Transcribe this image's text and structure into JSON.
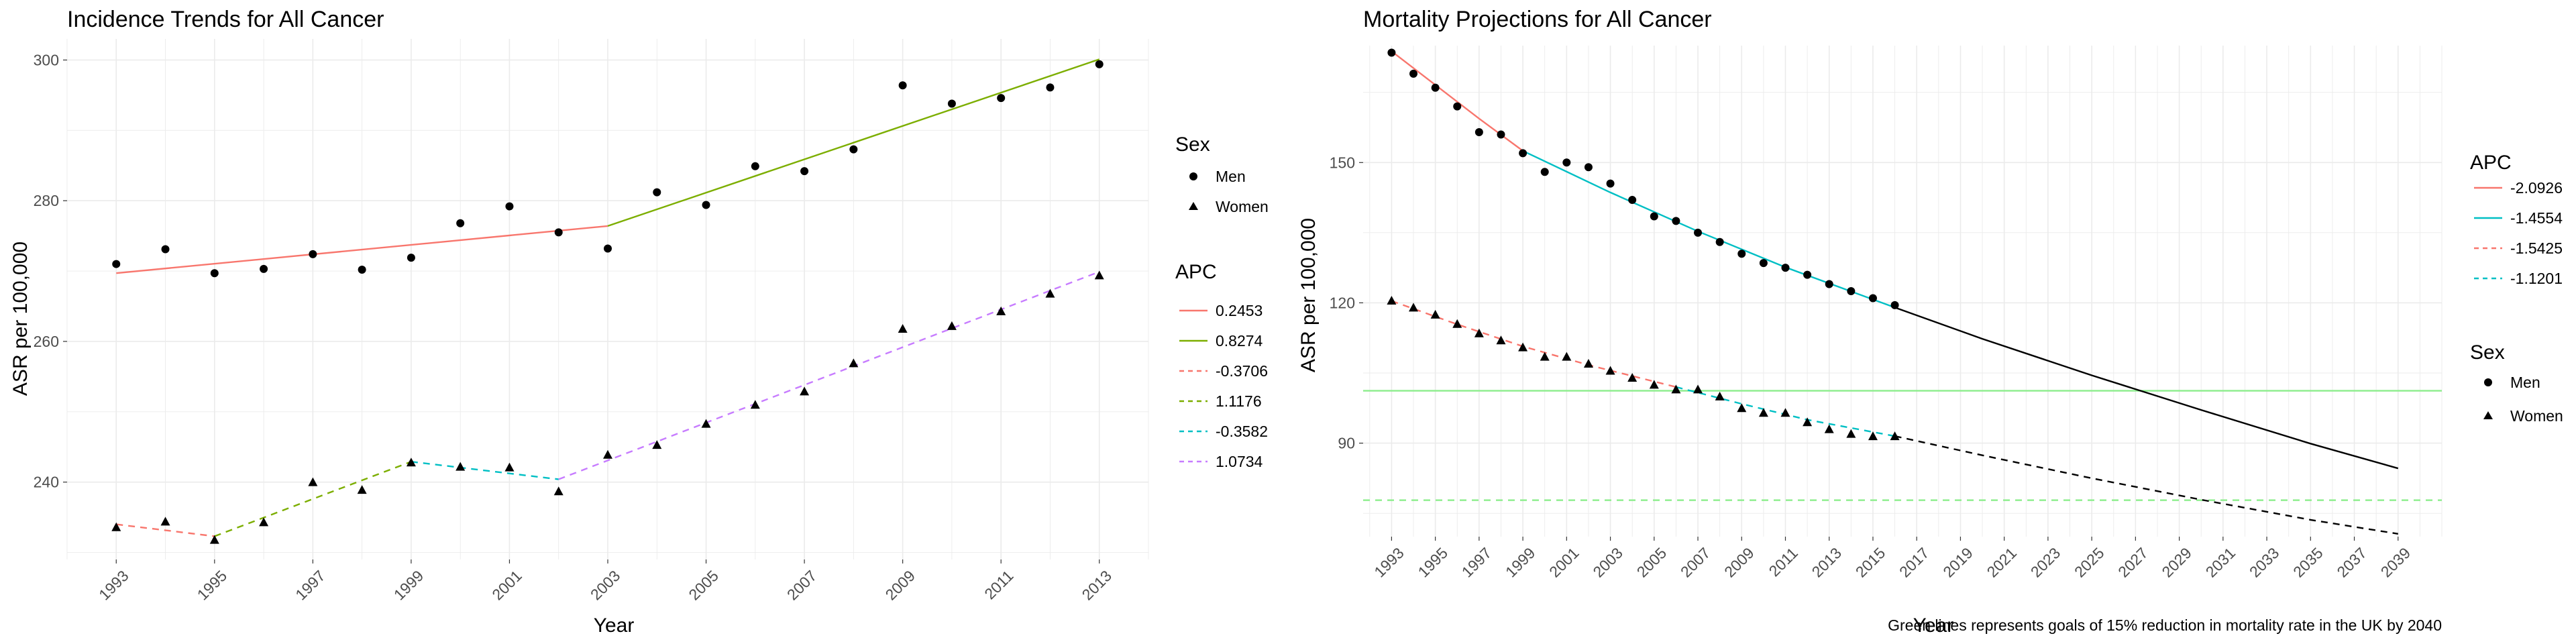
{
  "colors": {
    "red": "#F8766D",
    "olive": "#7CAE00",
    "cyan": "#00BFC4",
    "purple": "#C77CFF",
    "green_goal": "#90EE90",
    "black": "#000000",
    "grid": "#ebebeb"
  },
  "chart_data": [
    {
      "type": "scatter",
      "title": "Incidence Trends for All Cancer",
      "xlabel": "Year",
      "ylabel": "ASR per 100,000",
      "xlim": [
        1992,
        2014
      ],
      "ylim": [
        229,
        303
      ],
      "xticks": [
        "1993",
        "1995",
        "1997",
        "1999",
        "2001",
        "2003",
        "2005",
        "2007",
        "2009",
        "2011",
        "2013"
      ],
      "yticks": [
        "240",
        "260",
        "280",
        "300"
      ],
      "grid": true,
      "legend_placement": "right",
      "legend_sex": {
        "title": "Sex",
        "items": [
          {
            "label": "Men",
            "shape": "circle"
          },
          {
            "label": "Women",
            "shape": "triangle"
          }
        ]
      },
      "legend_apc": {
        "title": "APC",
        "items": [
          {
            "label": "0.2453",
            "color": "#F8766D",
            "dash": "solid"
          },
          {
            "label": "0.8274",
            "color": "#7CAE00",
            "dash": "solid"
          },
          {
            "label": "-0.3706",
            "color": "#F8766D",
            "dash": "dashed"
          },
          {
            "label": "1.1176",
            "color": "#7CAE00",
            "dash": "dashed"
          },
          {
            "label": "-0.3582",
            "color": "#00BFC4",
            "dash": "dashed"
          },
          {
            "label": "1.0734",
            "color": "#C77CFF",
            "dash": "dashed"
          }
        ]
      },
      "series": [
        {
          "name": "Men",
          "shape": "circle",
          "x": [
            1993,
            1994,
            1995,
            1996,
            1997,
            1998,
            1999,
            2000,
            2001,
            2002,
            2003,
            2004,
            2005,
            2006,
            2007,
            2008,
            2009,
            2010,
            2011,
            2012,
            2013
          ],
          "y": [
            271.0,
            273.1,
            269.7,
            270.3,
            272.4,
            270.2,
            271.9,
            276.8,
            279.2,
            275.5,
            273.2,
            281.2,
            279.4,
            284.9,
            284.2,
            287.3,
            296.4,
            293.8,
            294.6,
            296.1,
            299.4
          ]
        },
        {
          "name": "Women",
          "shape": "triangle",
          "x": [
            1993,
            1994,
            1995,
            1996,
            1997,
            1998,
            1999,
            2000,
            2001,
            2002,
            2003,
            2004,
            2005,
            2006,
            2007,
            2008,
            2009,
            2010,
            2011,
            2012,
            2013
          ],
          "y": [
            233.6,
            234.4,
            231.8,
            234.3,
            240.0,
            238.9,
            242.8,
            242.2,
            242.1,
            238.7,
            243.9,
            245.3,
            248.3,
            251.0,
            252.9,
            256.9,
            261.8,
            262.2,
            264.3,
            266.8,
            269.4
          ]
        }
      ],
      "fit_lines": [
        {
          "apc": "0.2453",
          "color": "#F8766D",
          "dash": "solid",
          "x": [
            1993,
            2003
          ],
          "y": [
            269.7,
            276.4
          ]
        },
        {
          "apc": "0.8274",
          "color": "#7CAE00",
          "dash": "solid",
          "x": [
            2003,
            2013
          ],
          "y": [
            276.4,
            300.1
          ]
        },
        {
          "apc": "-0.3706",
          "color": "#F8766D",
          "dash": "dashed",
          "x": [
            1993,
            1995
          ],
          "y": [
            234.0,
            232.3
          ]
        },
        {
          "apc": "1.1176",
          "color": "#7CAE00",
          "dash": "dashed",
          "x": [
            1995,
            1999
          ],
          "y": [
            232.3,
            242.9
          ]
        },
        {
          "apc": "-0.3582",
          "color": "#00BFC4",
          "dash": "dashed",
          "x": [
            1999,
            2002
          ],
          "y": [
            242.9,
            240.4
          ]
        },
        {
          "apc": "1.0734",
          "color": "#C77CFF",
          "dash": "dashed",
          "x": [
            2002,
            2013
          ],
          "y": [
            240.4,
            269.9
          ]
        }
      ]
    },
    {
      "type": "scatter",
      "title": "Mortality Projections for All Cancer",
      "xlabel": "Year",
      "ylabel": "ASR per 100,000",
      "xlim": [
        1991.7,
        2041
      ],
      "ylim": [
        70,
        175
      ],
      "xticks": [
        "1993",
        "1995",
        "1997",
        "1999",
        "2001",
        "2003",
        "2005",
        "2007",
        "2009",
        "2011",
        "2013",
        "2015",
        "2017",
        "2019",
        "2021",
        "2023",
        "2025",
        "2027",
        "2029",
        "2031",
        "2033",
        "2035",
        "2037",
        "2039"
      ],
      "yticks": [
        "90",
        "120",
        "150"
      ],
      "grid": true,
      "legend_placement": "right",
      "caption": "Green lines represents goals of 15% reduction in mortality rate in the UK by 2040",
      "legend_apc": {
        "title": "APC",
        "items": [
          {
            "label": "-2.0926",
            "color": "#F8766D",
            "dash": "solid"
          },
          {
            "label": "-1.4554",
            "color": "#00BFC4",
            "dash": "solid"
          },
          {
            "label": "-1.5425",
            "color": "#F8766D",
            "dash": "dashed"
          },
          {
            "label": "-1.1201",
            "color": "#00BFC4",
            "dash": "dashed"
          }
        ]
      },
      "legend_sex": {
        "title": "Sex",
        "items": [
          {
            "label": "Men",
            "shape": "circle"
          },
          {
            "label": "Women",
            "shape": "triangle"
          }
        ]
      },
      "series": [
        {
          "name": "Men",
          "shape": "circle",
          "x": [
            1993,
            1994,
            1995,
            1996,
            1997,
            1998,
            1999,
            2000,
            2001,
            2002,
            2003,
            2004,
            2005,
            2006,
            2007,
            2008,
            2009,
            2010,
            2011,
            2012,
            2013,
            2014,
            2015,
            2016
          ],
          "y": [
            173.5,
            169.0,
            166.0,
            162.0,
            156.5,
            156.0,
            152.0,
            148.0,
            150.0,
            149.0,
            145.5,
            142.0,
            138.5,
            137.5,
            135.0,
            133.0,
            130.5,
            128.5,
            127.5,
            126.0,
            124.0,
            122.5,
            121.0,
            119.5
          ]
        },
        {
          "name": "Women",
          "shape": "triangle",
          "x": [
            1993,
            1994,
            1995,
            1996,
            1997,
            1998,
            1999,
            2000,
            2001,
            2002,
            2003,
            2004,
            2005,
            2006,
            2007,
            2008,
            2009,
            2010,
            2011,
            2012,
            2013,
            2014,
            2015,
            2016
          ],
          "y": [
            120.5,
            119.0,
            117.5,
            115.5,
            113.5,
            112.0,
            110.5,
            108.5,
            108.5,
            107.0,
            105.5,
            104.0,
            102.5,
            101.5,
            101.5,
            100.0,
            97.5,
            96.5,
            96.5,
            94.5,
            93.0,
            92.0,
            91.5,
            91.5
          ]
        }
      ],
      "fit_lines": [
        {
          "apc": "-2.0926",
          "color": "#F8766D",
          "dash": "solid",
          "x": [
            1993,
            1995,
            1997,
            1999
          ],
          "y": [
            173.8,
            166.6,
            159.4,
            152.5
          ]
        },
        {
          "apc": "-1.4554",
          "color": "#00BFC4",
          "dash": "solid",
          "x": [
            1999,
            2003,
            2007,
            2011,
            2016
          ],
          "y": [
            152.5,
            143.6,
            135.3,
            127.6,
            119.0
          ]
        },
        {
          "apc": "-1.5425",
          "color": "#F8766D",
          "dash": "dashed",
          "x": [
            1993,
            1996,
            1999,
            2002,
            2006
          ],
          "y": [
            120.4,
            115.4,
            110.7,
            106.7,
            102.0
          ]
        },
        {
          "apc": "-1.1201",
          "color": "#00BFC4",
          "dash": "dashed",
          "x": [
            2006,
            2009,
            2012,
            2016
          ],
          "y": [
            102.0,
            98.4,
            95.0,
            91.5
          ]
        }
      ],
      "projections": [
        {
          "name": "Men projection",
          "color": "#000000",
          "dash": "solid",
          "x": [
            2016,
            2020,
            2025,
            2030,
            2035,
            2039
          ],
          "y": [
            119.0,
            112.3,
            104.5,
            97.1,
            89.9,
            84.6
          ]
        },
        {
          "name": "Women projection",
          "color": "#000000",
          "dash": "dashed",
          "x": [
            2016,
            2020,
            2025,
            2030,
            2035,
            2039
          ],
          "y": [
            91.5,
            87.4,
            82.5,
            77.9,
            73.6,
            70.6
          ]
        }
      ],
      "goal_lines": [
        {
          "name": "Men goal",
          "color": "#90EE90",
          "dash": "solid",
          "y": 101.2
        },
        {
          "name": "Women goal",
          "color": "#90EE90",
          "dash": "dashed",
          "y": 77.8
        }
      ]
    }
  ]
}
